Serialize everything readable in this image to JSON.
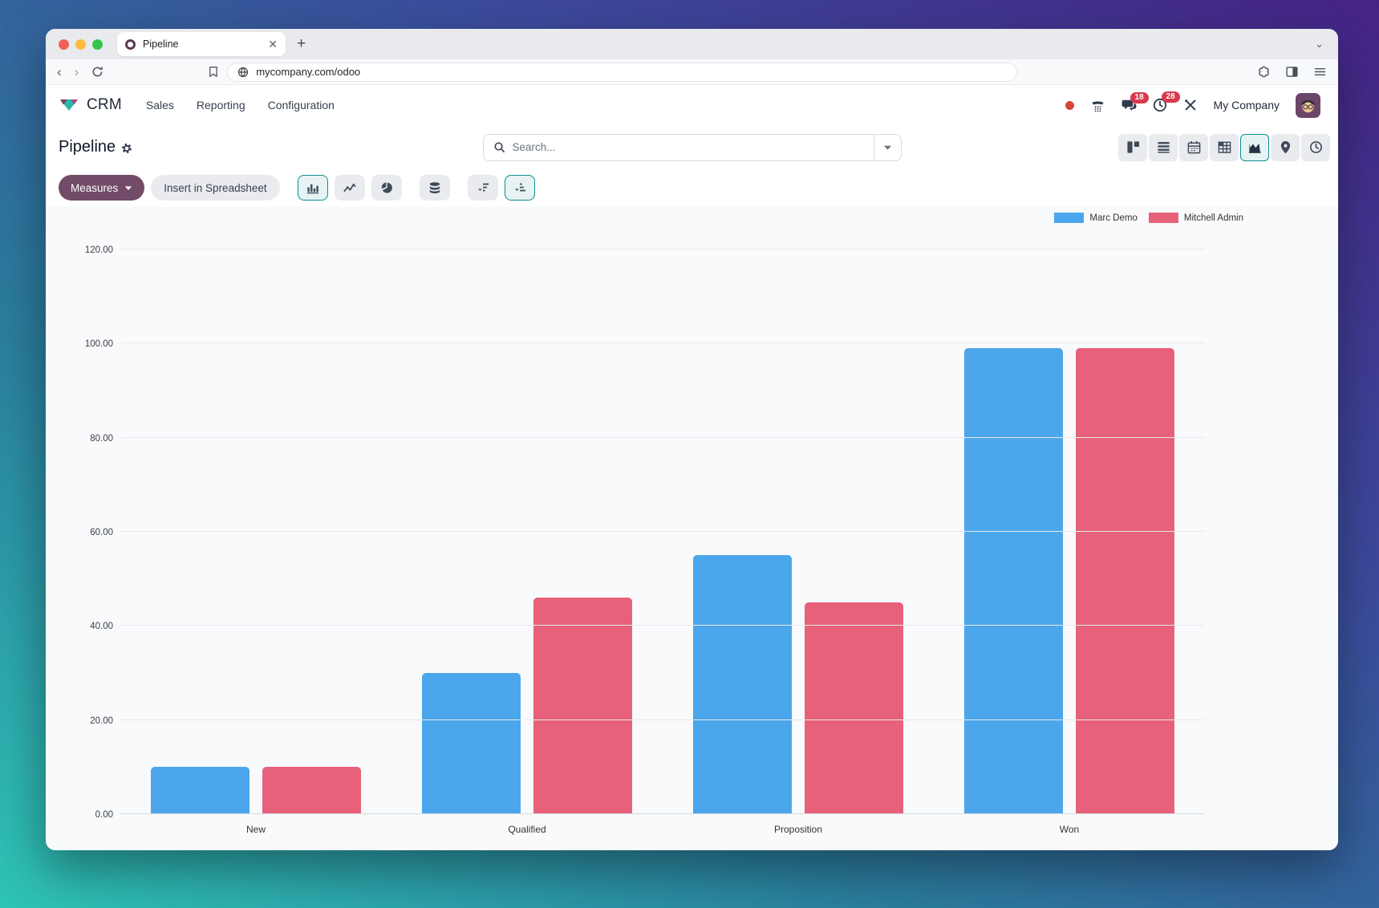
{
  "browser": {
    "tab_title": "Pipeline",
    "url": "mycompany.com/odoo"
  },
  "app_header": {
    "app_name": "CRM",
    "menus": [
      "Sales",
      "Reporting",
      "Configuration"
    ],
    "systray": {
      "messages_badge": "18",
      "activities_badge": "28",
      "company": "My Company"
    }
  },
  "control_panel": {
    "title": "Pipeline",
    "search_placeholder": "Search...",
    "measures_label": "Measures",
    "insert_spreadsheet_label": "Insert in Spreadsheet"
  },
  "colors": {
    "accent_teal": "#0e8c93",
    "primary_purple": "#714B67",
    "badge_red": "#d9394d",
    "series_blue": "#4ba6ec",
    "series_red": "#e8617a"
  },
  "chart_data": {
    "type": "bar",
    "title": "Pipeline",
    "categories": [
      "New",
      "Qualified",
      "Proposition",
      "Won"
    ],
    "series": [
      {
        "name": "Marc Demo",
        "color": "#4ba6ec",
        "values": [
          10,
          30,
          55,
          99
        ]
      },
      {
        "name": "Mitchell Admin",
        "color": "#e8617a",
        "values": [
          10,
          46,
          45,
          99
        ]
      }
    ],
    "xlabel": "",
    "ylabel": "",
    "ylim": [
      0,
      120
    ],
    "yticks": [
      "0.00",
      "20.00",
      "40.00",
      "60.00",
      "80.00",
      "100.00",
      "120.00"
    ],
    "grid": true,
    "legend_position": "top-right"
  }
}
